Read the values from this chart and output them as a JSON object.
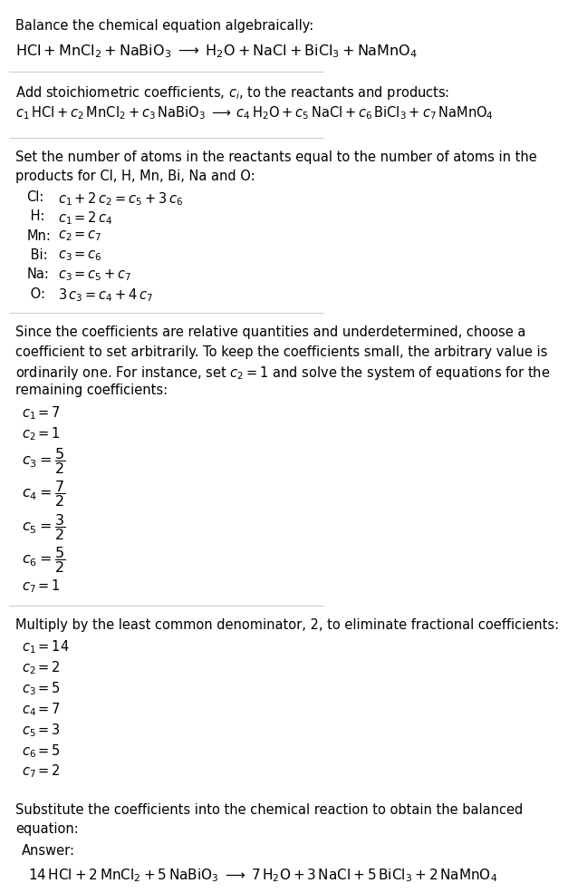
{
  "title_line": "Balance the chemical equation algebraically:",
  "equation_line": "$\\mathrm{HCl + MnCl_2 + NaBiO_3 \\;\\longrightarrow\\; H_2O + NaCl + BiCl_3 + NaMnO_4}$",
  "section2_intro": "Add stoichiometric coefficients, $c_i$, to the reactants and products:",
  "section2_eq": "$c_1\\,\\mathrm{HCl} + c_2\\,\\mathrm{MnCl_2} + c_3\\,\\mathrm{NaBiO_3} \\;\\longrightarrow\\; c_4\\,\\mathrm{H_2O} + c_5\\,\\mathrm{NaCl} + c_6\\,\\mathrm{BiCl_3} + c_7\\,\\mathrm{NaMnO_4}$",
  "section3_intro1": "Set the number of atoms in the reactants equal to the number of atoms in the",
  "section3_intro2": "products for Cl, H, Mn, Bi, Na and O:",
  "equations": [
    [
      "Cl:",
      "$c_1 + 2\\,c_2 = c_5 + 3\\,c_6$"
    ],
    [
      " H:",
      "$c_1 = 2\\,c_4$"
    ],
    [
      "Mn:",
      "$c_2 = c_7$"
    ],
    [
      " Bi:",
      "$c_3 = c_6$"
    ],
    [
      "Na:",
      "$c_3 = c_5 + c_7$"
    ],
    [
      " O:",
      "$3\\,c_3 = c_4 + 4\\,c_7$"
    ]
  ],
  "section4_intro1": "Since the coefficients are relative quantities and underdetermined, choose a",
  "section4_intro2": "coefficient to set arbitrarily. To keep the coefficients small, the arbitrary value is",
  "section4_intro3": "ordinarily one. For instance, set $c_2 = 1$ and solve the system of equations for the",
  "section4_intro4": "remaining coefficients:",
  "coeffs1": [
    "$c_1 = 7$",
    "$c_2 = 1$",
    "$c_3 = \\dfrac{5}{2}$",
    "$c_4 = \\dfrac{7}{2}$",
    "$c_5 = \\dfrac{3}{2}$",
    "$c_6 = \\dfrac{5}{2}$",
    "$c_7 = 1$"
  ],
  "coeffs1_is_frac": [
    false,
    false,
    true,
    true,
    true,
    true,
    false
  ],
  "section5_intro": "Multiply by the least common denominator, 2, to eliminate fractional coefficients:",
  "coeffs2": [
    "$c_1 = 14$",
    "$c_2 = 2$",
    "$c_3 = 5$",
    "$c_4 = 7$",
    "$c_5 = 3$",
    "$c_6 = 5$",
    "$c_7 = 2$"
  ],
  "section6_intro1": "Substitute the coefficients into the chemical reaction to obtain the balanced",
  "section6_intro2": "equation:",
  "answer_label": "Answer:",
  "answer_eq": "$14\\,\\mathrm{HCl} + 2\\,\\mathrm{MnCl_2} + 5\\,\\mathrm{NaBiO_3} \\;\\longrightarrow\\; 7\\,\\mathrm{H_2O} + 3\\,\\mathrm{NaCl} + 5\\,\\mathrm{BiCl_3} + 2\\,\\mathrm{NaMnO_4}$",
  "bg_color": "#ffffff",
  "answer_bg": "#e8f4f8",
  "answer_border": "#aaccdd",
  "text_color": "#000000",
  "font_size": 10.5
}
